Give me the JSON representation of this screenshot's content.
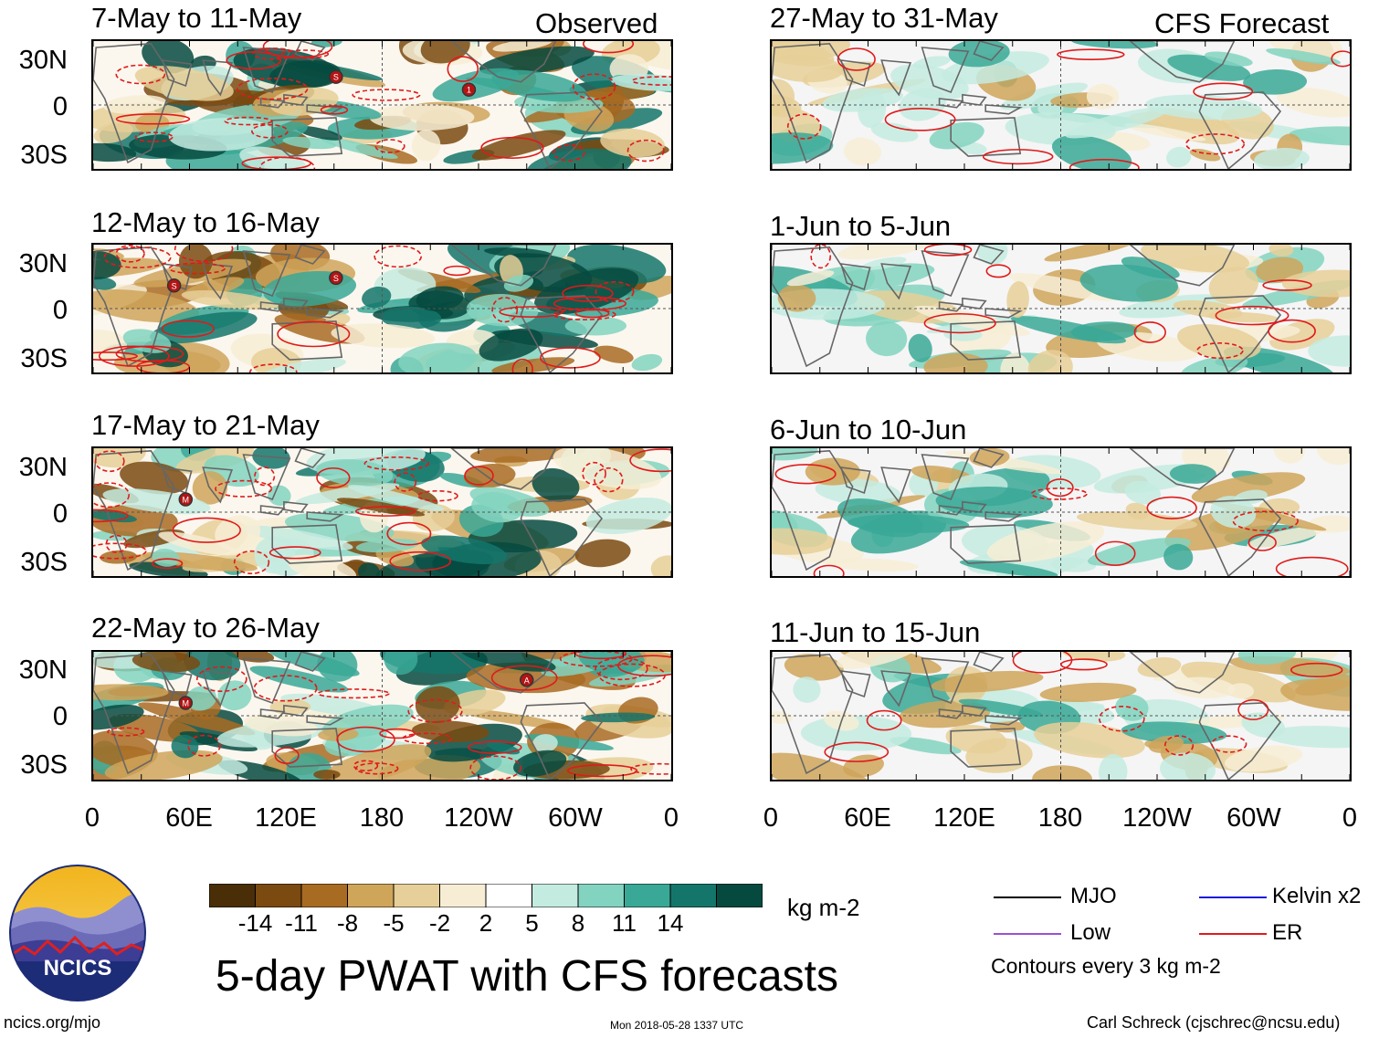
{
  "panels": {
    "observed": [
      {
        "title": "7-May to 11-May",
        "label": "Observed"
      },
      {
        "title": "12-May to 16-May",
        "label": ""
      },
      {
        "title": "17-May to 21-May",
        "label": ""
      },
      {
        "title": "22-May to 26-May",
        "label": ""
      }
    ],
    "forecast": [
      {
        "title": "27-May to 31-May",
        "label": "CFS Forecast"
      },
      {
        "title": "1-Jun to 5-Jun",
        "label": ""
      },
      {
        "title": "6-Jun to 10-Jun",
        "label": ""
      },
      {
        "title": "11-Jun to 15-Jun",
        "label": ""
      }
    ]
  },
  "axes": {
    "lat_labels": [
      "30N",
      "0",
      "30S"
    ],
    "lon_labels": [
      "0",
      "60E",
      "120E",
      "180",
      "120W",
      "60W",
      "0"
    ]
  },
  "colorbar": {
    "ticks": [
      "-14",
      "-11",
      "-8",
      "-5",
      "-2",
      "2",
      "5",
      "8",
      "11",
      "14"
    ],
    "colors": [
      "#4a2e08",
      "#7a4a10",
      "#a86b22",
      "#cfa55a",
      "#e6cf98",
      "#f7edd5",
      "#ffffff",
      "#c4ebe0",
      "#82d3c0",
      "#3aa896",
      "#14766b",
      "#064a3f"
    ],
    "units": "kg m-2"
  },
  "title": "5-day PWAT with CFS forecasts",
  "legend": {
    "items": [
      {
        "label": "MJO",
        "color": "#000000"
      },
      {
        "label": "Kelvin x2",
        "color": "#1a1ad8"
      },
      {
        "label": "Low",
        "color": "#9b4fd6"
      },
      {
        "label": "ER",
        "color": "#e01a1a"
      }
    ],
    "note": "Contours every 3 kg m-2"
  },
  "logo": {
    "text": "NCICS"
  },
  "footer": {
    "url": "ncics.org/mjo",
    "timestamp": "Mon 2018-05-28 1337 UTC",
    "author": "Carl Schreck (cjschrec@ncsu.edu)"
  },
  "storm_markers": [
    {
      "panel": "obs-0",
      "symbol": "S"
    },
    {
      "panel": "obs-0",
      "symbol": "1"
    },
    {
      "panel": "obs-1",
      "symbol": "S"
    },
    {
      "panel": "obs-1",
      "symbol": "S"
    },
    {
      "panel": "obs-2",
      "symbol": "M"
    },
    {
      "panel": "obs-3",
      "symbol": "M"
    },
    {
      "panel": "obs-3",
      "symbol": "A"
    }
  ]
}
